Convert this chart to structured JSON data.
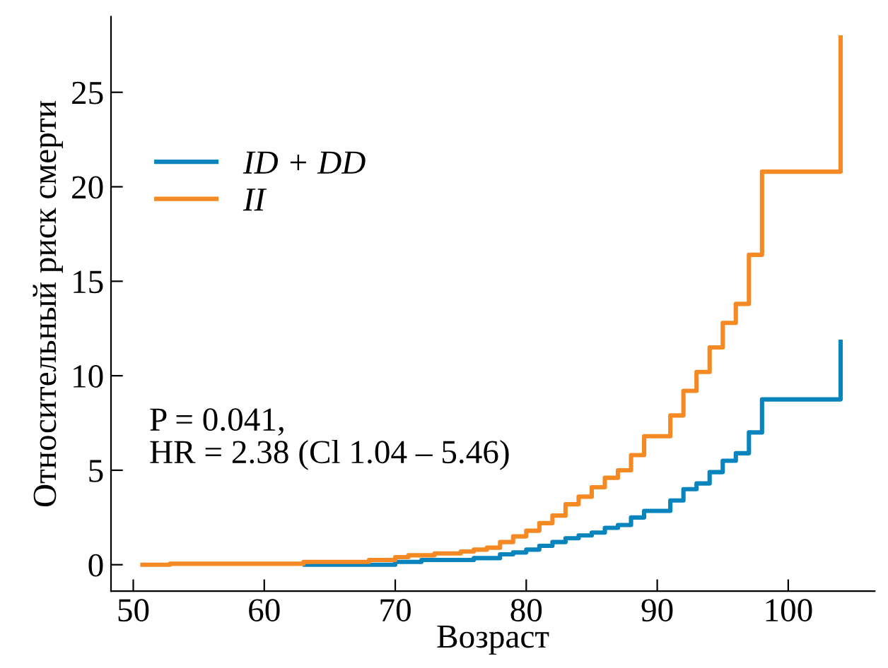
{
  "chart_data": {
    "type": "step",
    "xlabel": "Возраст",
    "ylabel": "Относительный риск смерти",
    "xlim": [
      48.3,
      106.6
    ],
    "ylim": [
      -1.4,
      29
    ],
    "xticks": [
      50,
      60,
      70,
      80,
      90,
      100
    ],
    "yticks": [
      0,
      5,
      10,
      15,
      20,
      25
    ],
    "grid": false,
    "legend": "top left",
    "line_style": "solid",
    "marker": "none",
    "annotations": [
      "P = 0.041,\nHR = 2.38 (Cl 1.04 – 5.46)"
    ],
    "series": [
      {
        "name": "ID + DD",
        "color": "#0a84bd",
        "x": [
          63.1,
          70,
          72,
          76,
          78,
          79,
          80,
          81,
          82,
          83,
          84,
          85,
          86,
          87,
          88,
          89,
          91,
          92,
          93,
          94,
          95,
          96,
          97,
          98,
          104,
          104
        ],
        "values": [
          0,
          0.15,
          0.25,
          0.35,
          0.55,
          0.65,
          0.8,
          1.0,
          1.2,
          1.4,
          1.55,
          1.7,
          1.95,
          2.1,
          2.5,
          2.85,
          3.4,
          4.0,
          4.3,
          4.9,
          5.5,
          5.9,
          7.0,
          8.75,
          8.75,
          11.8
        ]
      },
      {
        "name": "II",
        "color": "#f58a24",
        "x": [
          50.7,
          52.8,
          63,
          68,
          70,
          71,
          73,
          75,
          76,
          77,
          78,
          79,
          80,
          81,
          82,
          83,
          84,
          85,
          86,
          87,
          88,
          89,
          91,
          92,
          93,
          94,
          95,
          96,
          97,
          98,
          104,
          104
        ],
        "values": [
          0,
          0.05,
          0.15,
          0.25,
          0.4,
          0.5,
          0.6,
          0.7,
          0.8,
          0.9,
          1.2,
          1.5,
          1.8,
          2.2,
          2.6,
          3.2,
          3.6,
          4.1,
          4.6,
          5.0,
          5.8,
          6.8,
          7.9,
          9.2,
          10.2,
          11.5,
          12.8,
          13.8,
          16.4,
          20.8,
          20.8,
          27.9
        ]
      }
    ]
  }
}
